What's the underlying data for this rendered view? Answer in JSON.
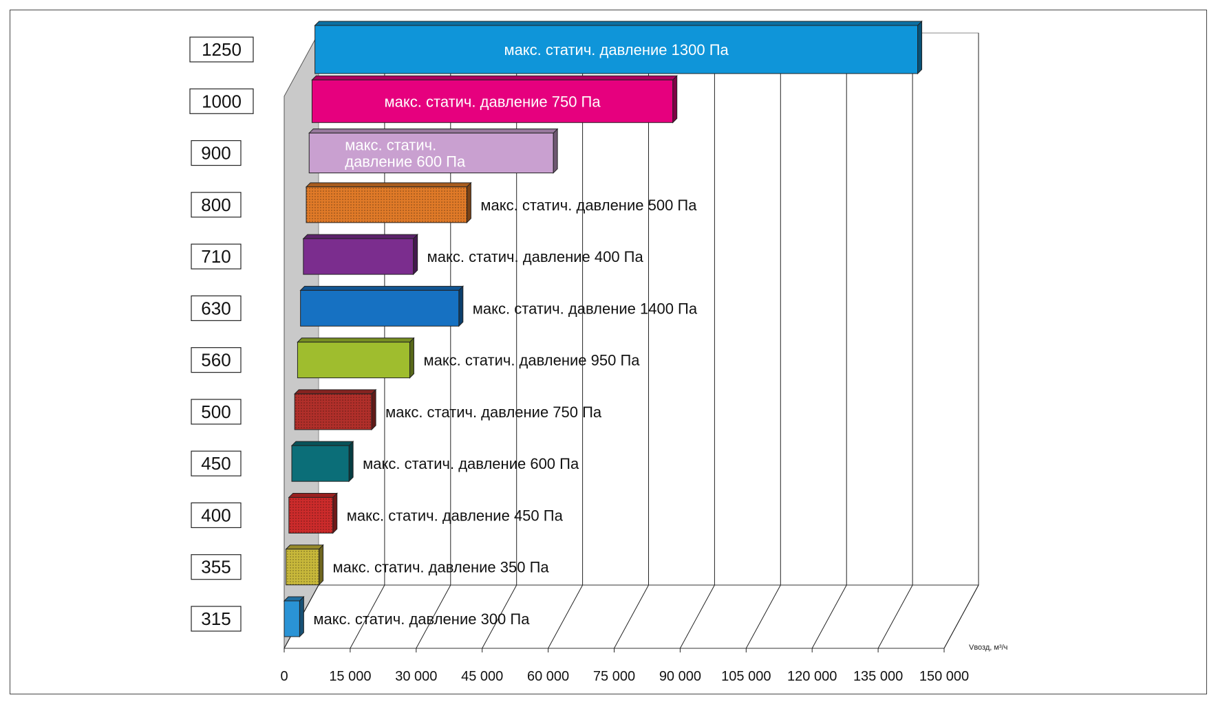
{
  "chart_data": {
    "type": "bar",
    "orientation": "horizontal",
    "style": "3d",
    "categories": [
      "315",
      "355",
      "400",
      "450",
      "500",
      "560",
      "630",
      "710",
      "800",
      "900",
      "1000",
      "1250"
    ],
    "values": [
      3500,
      7500,
      10000,
      13000,
      17500,
      25500,
      36000,
      25000,
      36500,
      55500,
      82000,
      137000
    ],
    "bar_labels": [
      "макс. статич. давление 300 Па",
      "макс. статич. давление 350 Па",
      "макс. статич. давление 450 Па",
      "макс. статич. давление 600 Па",
      "макс. статич. давление 750 Па",
      "макс. статич. давление 950 Па",
      "макс. статич. давление 1400 Па",
      "макс. статич. давление 400 Па",
      "макс. статич. давление 500 Па",
      "макс. статич. давление 600 Па",
      "макс. статич. давление 750 Па",
      "макс. статич. давление 1300 Па"
    ],
    "bar_label_placement": [
      "outside",
      "outside",
      "outside",
      "outside",
      "outside",
      "outside",
      "outside",
      "outside",
      "outside",
      "inside",
      "inside",
      "inside"
    ],
    "colors": [
      "#2a93d5",
      "#c8b83a",
      "#cc2b2b",
      "#0b6e78",
      "#b12f2a",
      "#9fbd2e",
      "#1671c2",
      "#7b2d8e",
      "#e07a28",
      "#c9a0d0",
      "#e6007e",
      "#0f95d9"
    ],
    "x_ticks": [
      "0",
      "15 000",
      "30 000",
      "45 000",
      "60 000",
      "75 000",
      "90 000",
      "105 000",
      "120 000",
      "135 000",
      "150 000"
    ],
    "xlim": [
      0,
      150000
    ],
    "xlabel": "Vвозд, м³/ч",
    "grid": true
  }
}
